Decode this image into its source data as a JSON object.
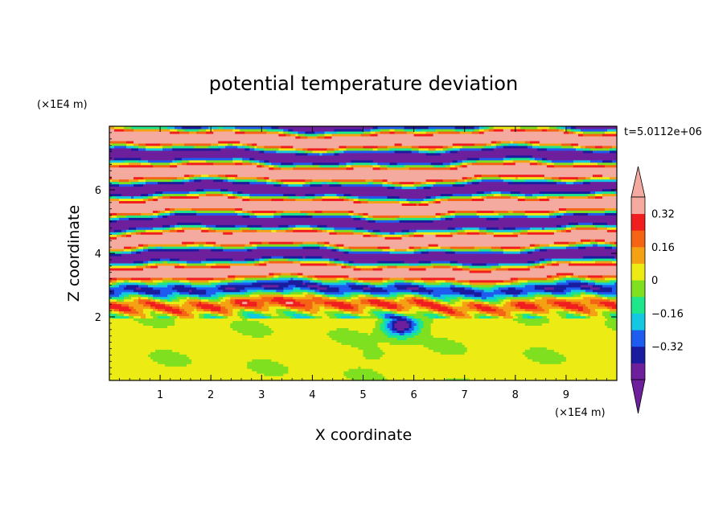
{
  "chart_data": {
    "type": "heatmap",
    "title": "potential temperature deviation",
    "xlabel": "X coordinate",
    "ylabel": "Z coordinate",
    "x_unit": "(×1E4 m)",
    "y_unit": "(×1E4 m)",
    "time_label": "t=5.0112e+06",
    "xlim": [
      0,
      10
    ],
    "ylim": [
      0,
      8
    ],
    "x_ticks": [
      1,
      2,
      3,
      4,
      5,
      6,
      7,
      8,
      9
    ],
    "y_ticks": [
      2,
      4,
      6
    ],
    "colorbar": {
      "levels": [
        -0.4,
        -0.32,
        -0.24,
        -0.16,
        -0.08,
        0,
        0.08,
        0.16,
        0.24,
        0.32,
        0.4
      ],
      "tick_labels": [
        "0.32",
        "0.16",
        "0",
        "−0.16",
        "−0.32"
      ],
      "tick_values": [
        0.32,
        0.16,
        0,
        -0.16,
        -0.32
      ],
      "colors_bottom_to_top": [
        "#6d1f9c",
        "#1b1ba0",
        "#1e5cf0",
        "#13c8e0",
        "#1ee68a",
        "#7fe020",
        "#ecec14",
        "#f4a214",
        "#f46414",
        "#f01e1e",
        "#f5aaa0"
      ],
      "extend": "both"
    },
    "field_description": "Stratified alternating positive/negative bands above z≈2; near-zero turbulent mixed layer below z≈2 with a plume near x≈5.7"
  }
}
